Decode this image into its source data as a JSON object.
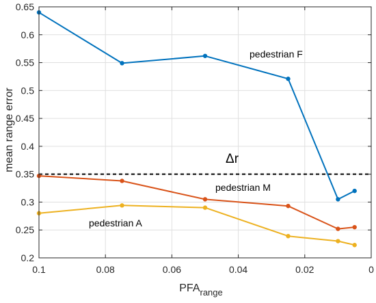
{
  "chart_data": {
    "type": "line",
    "title": "",
    "xlabel": "PFA",
    "xlabel_subscript": "range",
    "ylabel": "mean range error",
    "xlim": [
      0.1,
      0
    ],
    "ylim": [
      0.2,
      0.65
    ],
    "x_reversed": true,
    "grid": true,
    "xticks": [
      "0.1",
      "0.08",
      "0.06",
      "0.04",
      "0.02",
      "0"
    ],
    "yticks": [
      "0.2",
      "0.25",
      "0.3",
      "0.35",
      "0.4",
      "0.45",
      "0.5",
      "0.55",
      "0.6",
      "0.65"
    ],
    "x": [
      0.1,
      0.075,
      0.05,
      0.025,
      0.01,
      0.005
    ],
    "series": [
      {
        "name": "pedestrian F",
        "color": "#0072BD",
        "values": [
          0.64,
          0.549,
          0.562,
          0.521,
          0.305,
          0.32
        ]
      },
      {
        "name": "pedestrian M",
        "color": "#D95319",
        "values": [
          0.347,
          0.338,
          0.305,
          0.293,
          0.252,
          0.255
        ]
      },
      {
        "name": "pedestrian A",
        "color": "#EDB120",
        "values": [
          0.28,
          0.294,
          0.29,
          0.239,
          0.23,
          0.223
        ]
      }
    ],
    "reference_line": {
      "label": "Δr",
      "y": 0.35,
      "style": "dashed",
      "color": "#000000"
    },
    "annotations": [
      {
        "text": "pedestrian F",
        "series": "pedestrian F"
      },
      {
        "text": "pedestrian M",
        "series": "pedestrian M"
      },
      {
        "text": "pedestrian A",
        "series": "pedestrian A"
      }
    ]
  }
}
